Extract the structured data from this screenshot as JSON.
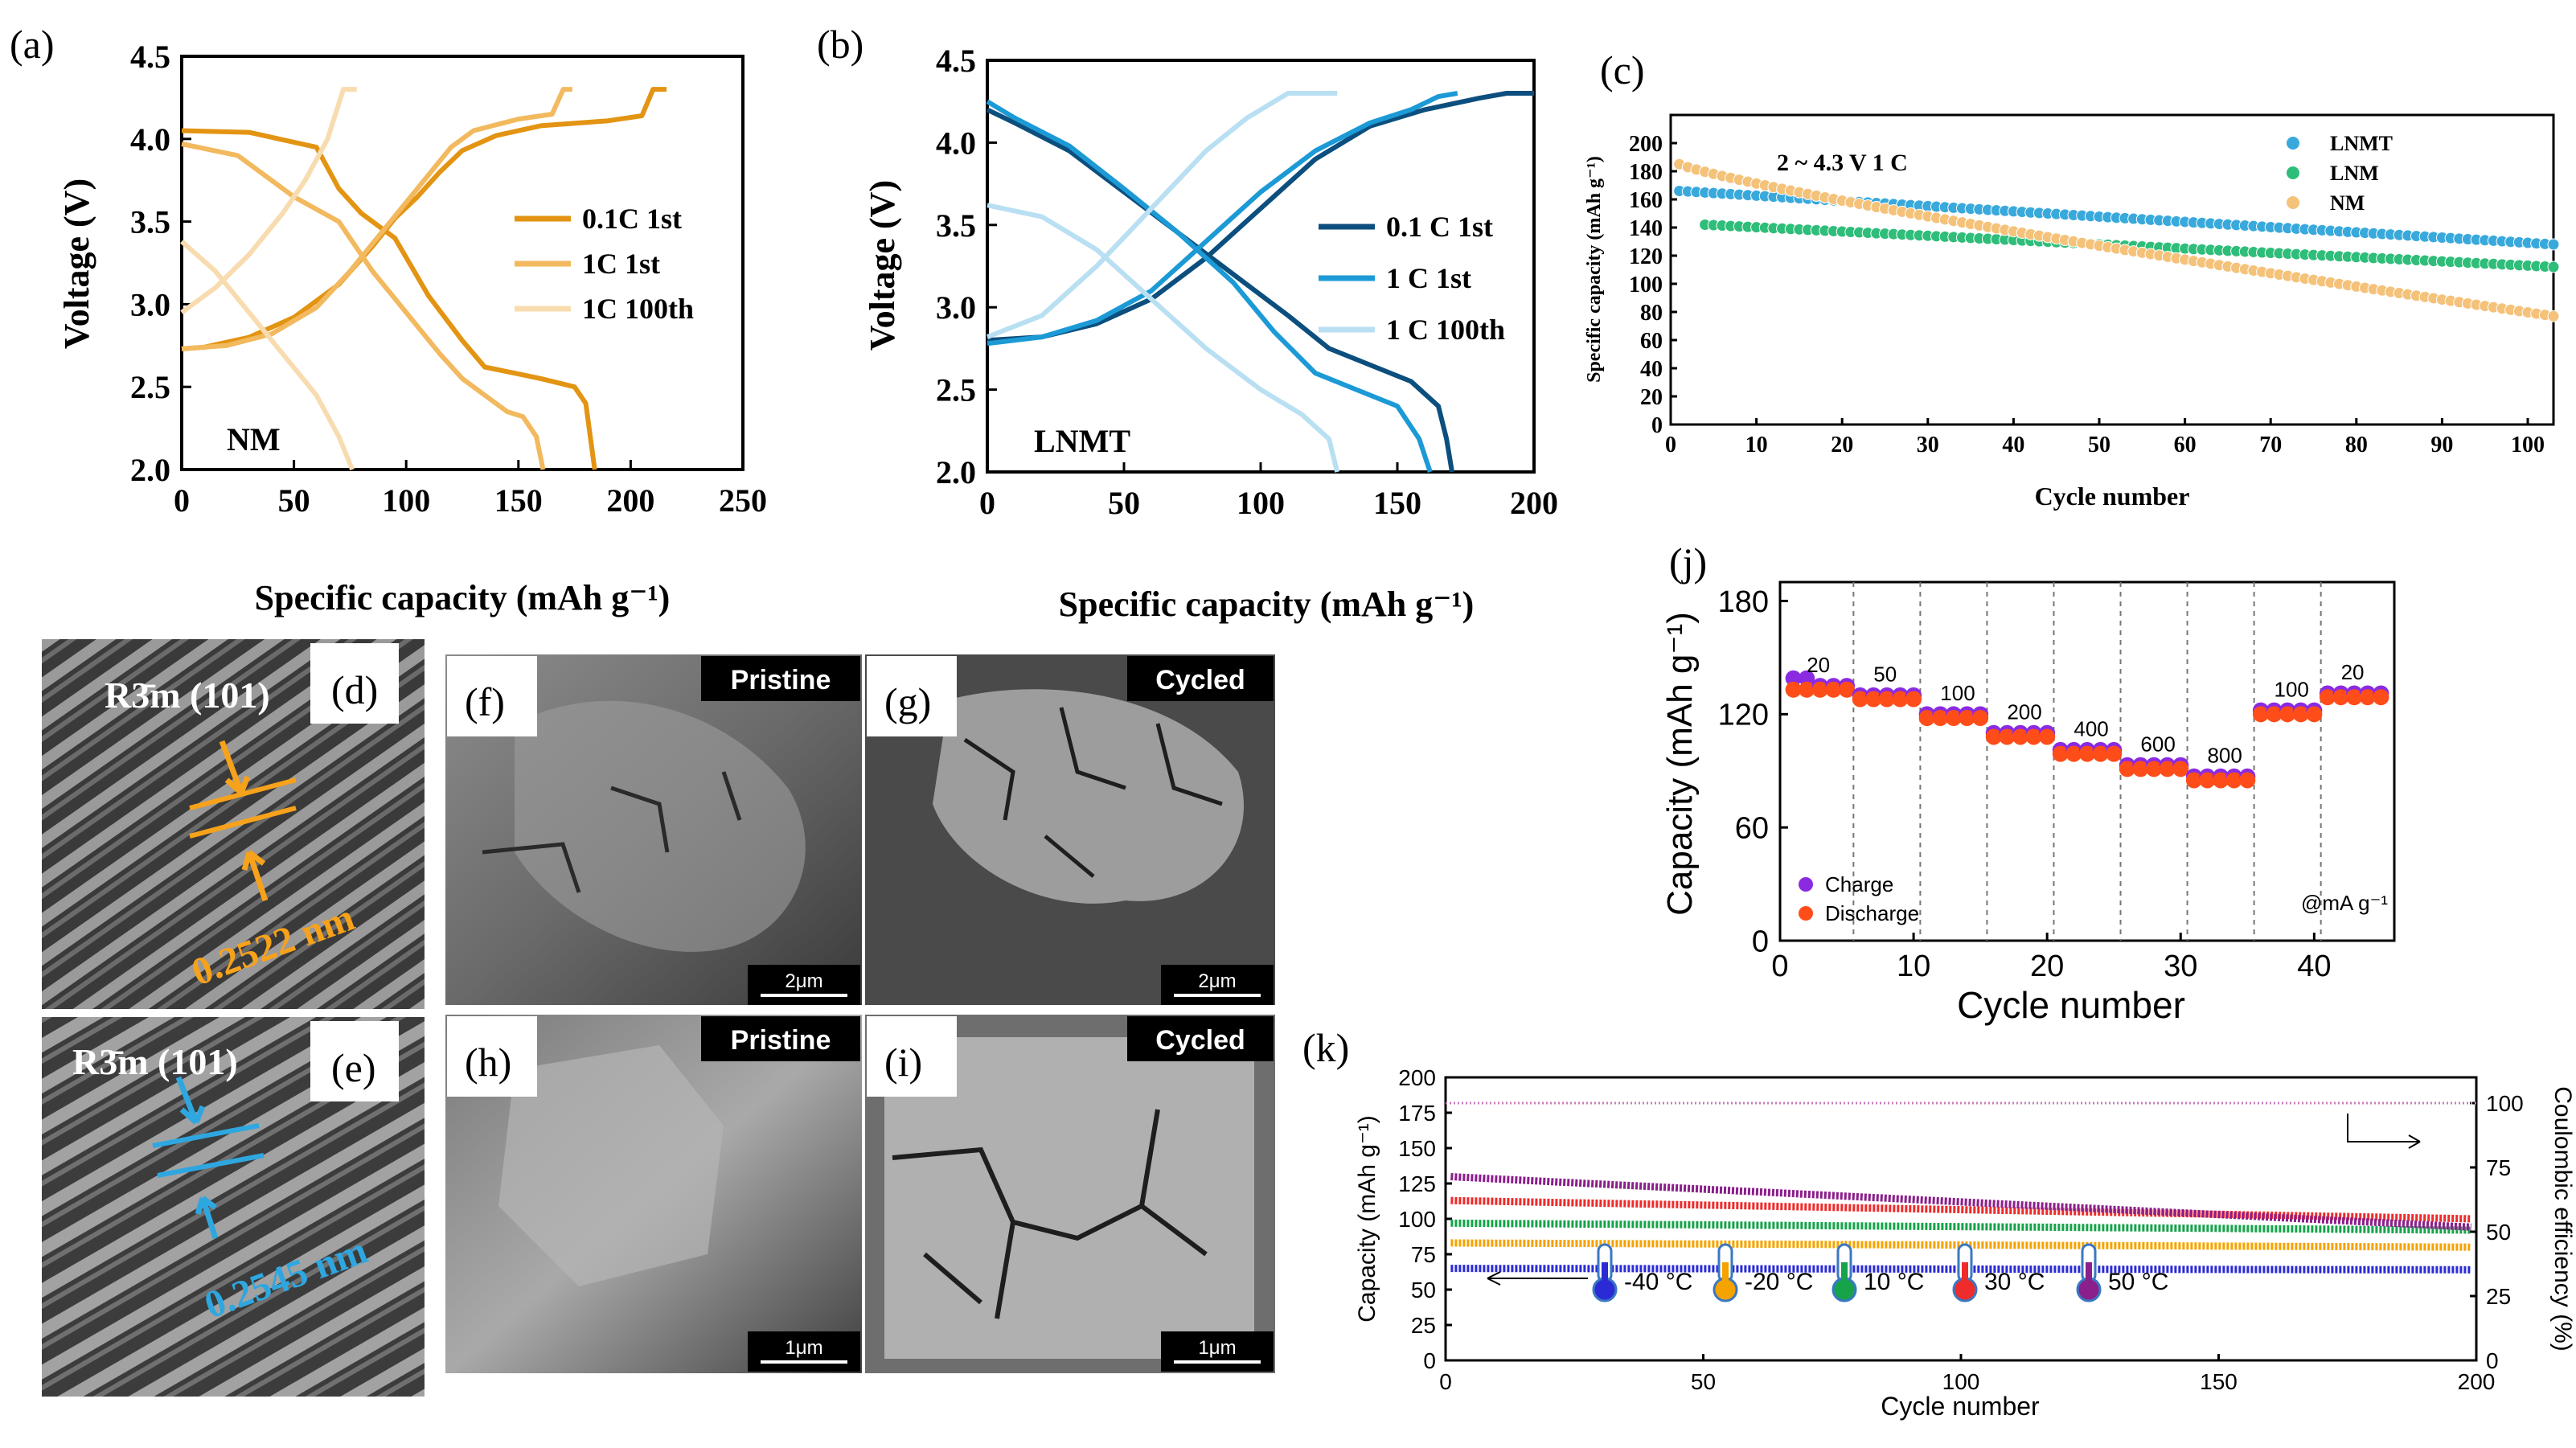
{
  "colors": {
    "orange_dark": "#e39412",
    "orange_mid": "#f2b95e",
    "orange_light": "#f8dcb0",
    "blue_dark": "#0c4f7e",
    "blue_mid": "#1c9ad6",
    "blue_light": "#b9dff2",
    "c_lnmt": "#39a9dc",
    "c_lnm": "#2fbd7a",
    "c_nm": "#f5c27a",
    "purple": "#8a2be2",
    "red_orange": "#ff4d1a",
    "hr_orange": "#f7a21b",
    "hr_blue": "#2ea7e0"
  },
  "panels": {
    "a": {
      "tag": "(a)",
      "sample_label": "NM"
    },
    "b": {
      "tag": "(b)",
      "sample_label": "LNMT"
    },
    "c": {
      "tag": "(c)",
      "condition": "2 ~ 4.3 V  1 C"
    },
    "d": {
      "tag": "(d)",
      "phase": "R3̄m (101)",
      "spacing": "0.2522 nm"
    },
    "e": {
      "tag": "(e)",
      "phase": "R3̄m (101)",
      "spacing": "0.2545 nm"
    },
    "f": {
      "tag": "(f)",
      "state": "Pristine",
      "scale": "2μm"
    },
    "g": {
      "tag": "(g)",
      "state": "Cycled",
      "scale": "2μm"
    },
    "h": {
      "tag": "(h)",
      "state": "Pristine",
      "scale": "1μm"
    },
    "i": {
      "tag": "(i)",
      "state": "Cycled",
      "scale": "1μm"
    },
    "j": {
      "tag": "(j)",
      "unit_note": "@mA g⁻¹"
    },
    "k": {
      "tag": "(k)",
      "temperatures": [
        "-40 °C",
        "-20 °C",
        "10 °C",
        "30 °C",
        "50 °C"
      ]
    }
  },
  "chart_data": [
    {
      "id": "a",
      "type": "line",
      "xlabel": "Specific capacity (mAh g⁻¹)",
      "ylabel": "Voltage (V)",
      "xlim": [
        0,
        250
      ],
      "ylim": [
        2.0,
        4.5
      ],
      "xticks": [
        0,
        50,
        100,
        150,
        200,
        250
      ],
      "yticks": [
        2.0,
        2.5,
        3.0,
        3.5,
        4.0,
        4.5
      ],
      "series": [
        {
          "name": "0.1C 1st",
          "color": "#e39412",
          "charge": [
            [
              0,
              2.73
            ],
            [
              10,
              2.74
            ],
            [
              30,
              2.8
            ],
            [
              50,
              2.92
            ],
            [
              70,
              3.12
            ],
            [
              85,
              3.35
            ],
            [
              95,
              3.52
            ],
            [
              105,
              3.65
            ],
            [
              115,
              3.8
            ],
            [
              125,
              3.93
            ],
            [
              140,
              4.02
            ],
            [
              160,
              4.08
            ],
            [
              190,
              4.11
            ],
            [
              205,
              4.14
            ],
            [
              210,
              4.3
            ],
            [
              216,
              4.3
            ]
          ],
          "discharge": [
            [
              0,
              4.05
            ],
            [
              30,
              4.04
            ],
            [
              60,
              3.95
            ],
            [
              70,
              3.7
            ],
            [
              80,
              3.55
            ],
            [
              95,
              3.4
            ],
            [
              110,
              3.05
            ],
            [
              125,
              2.78
            ],
            [
              135,
              2.62
            ],
            [
              160,
              2.55
            ],
            [
              175,
              2.5
            ],
            [
              180,
              2.4
            ],
            [
              184,
              2.0
            ]
          ]
        },
        {
          "name": "1C 1st",
          "color": "#f2b95e",
          "charge": [
            [
              0,
              2.73
            ],
            [
              20,
              2.75
            ],
            [
              40,
              2.82
            ],
            [
              60,
              2.98
            ],
            [
              75,
              3.2
            ],
            [
              90,
              3.45
            ],
            [
              105,
              3.7
            ],
            [
              120,
              3.95
            ],
            [
              130,
              4.05
            ],
            [
              150,
              4.12
            ],
            [
              165,
              4.15
            ],
            [
              170,
              4.3
            ],
            [
              174,
              4.3
            ]
          ],
          "discharge": [
            [
              0,
              3.97
            ],
            [
              25,
              3.9
            ],
            [
              50,
              3.65
            ],
            [
              70,
              3.5
            ],
            [
              85,
              3.2
            ],
            [
              100,
              2.95
            ],
            [
              115,
              2.7
            ],
            [
              125,
              2.55
            ],
            [
              135,
              2.45
            ],
            [
              145,
              2.35
            ],
            [
              152,
              2.32
            ],
            [
              158,
              2.2
            ],
            [
              161,
              2.0
            ]
          ]
        },
        {
          "name": "1C 100th",
          "color": "#f8dcb0",
          "charge": [
            [
              0,
              2.95
            ],
            [
              15,
              3.1
            ],
            [
              30,
              3.3
            ],
            [
              45,
              3.55
            ],
            [
              55,
              3.75
            ],
            [
              65,
              4.0
            ],
            [
              72,
              4.3
            ],
            [
              78,
              4.3
            ]
          ],
          "discharge": [
            [
              0,
              3.38
            ],
            [
              15,
              3.2
            ],
            [
              30,
              2.95
            ],
            [
              45,
              2.7
            ],
            [
              60,
              2.45
            ],
            [
              70,
              2.2
            ],
            [
              76,
              2.0
            ]
          ]
        }
      ]
    },
    {
      "id": "b",
      "type": "line",
      "xlabel": "Specific capacity (mAh g⁻¹)",
      "ylabel": "Voltage (V)",
      "xlim": [
        0,
        200
      ],
      "ylim": [
        2.0,
        4.5
      ],
      "xticks": [
        0,
        50,
        100,
        150,
        200
      ],
      "yticks": [
        2.0,
        2.5,
        3.0,
        3.5,
        4.0,
        4.5
      ],
      "series": [
        {
          "name": "0.1 C 1st",
          "color": "#0c4f7e",
          "charge": [
            [
              0,
              2.8
            ],
            [
              20,
              2.82
            ],
            [
              40,
              2.9
            ],
            [
              60,
              3.05
            ],
            [
              80,
              3.3
            ],
            [
              100,
              3.6
            ],
            [
              120,
              3.9
            ],
            [
              140,
              4.1
            ],
            [
              160,
              4.2
            ],
            [
              180,
              4.27
            ],
            [
              190,
              4.3
            ],
            [
              200,
              4.3
            ]
          ],
          "discharge": [
            [
              0,
              4.2
            ],
            [
              10,
              4.12
            ],
            [
              30,
              3.95
            ],
            [
              50,
              3.7
            ],
            [
              70,
              3.45
            ],
            [
              90,
              3.2
            ],
            [
              110,
              2.95
            ],
            [
              125,
              2.75
            ],
            [
              140,
              2.65
            ],
            [
              155,
              2.55
            ],
            [
              165,
              2.4
            ],
            [
              168,
              2.2
            ],
            [
              170,
              2.0
            ]
          ]
        },
        {
          "name": "1 C 1st",
          "color": "#1c9ad6",
          "charge": [
            [
              0,
              2.78
            ],
            [
              20,
              2.82
            ],
            [
              40,
              2.92
            ],
            [
              60,
              3.1
            ],
            [
              80,
              3.4
            ],
            [
              100,
              3.7
            ],
            [
              120,
              3.95
            ],
            [
              140,
              4.12
            ],
            [
              155,
              4.2
            ],
            [
              165,
              4.28
            ],
            [
              172,
              4.3
            ]
          ],
          "discharge": [
            [
              0,
              4.25
            ],
            [
              10,
              4.15
            ],
            [
              30,
              3.98
            ],
            [
              50,
              3.72
            ],
            [
              70,
              3.45
            ],
            [
              90,
              3.15
            ],
            [
              105,
              2.85
            ],
            [
              120,
              2.6
            ],
            [
              135,
              2.5
            ],
            [
              150,
              2.4
            ],
            [
              158,
              2.2
            ],
            [
              162,
              2.0
            ]
          ]
        },
        {
          "name": "1 C 100th",
          "color": "#b9dff2",
          "charge": [
            [
              0,
              2.82
            ],
            [
              20,
              2.95
            ],
            [
              40,
              3.25
            ],
            [
              60,
              3.6
            ],
            [
              80,
              3.95
            ],
            [
              95,
              4.15
            ],
            [
              110,
              4.3
            ],
            [
              128,
              4.3
            ]
          ],
          "discharge": [
            [
              0,
              3.62
            ],
            [
              20,
              3.55
            ],
            [
              40,
              3.35
            ],
            [
              60,
              3.05
            ],
            [
              80,
              2.75
            ],
            [
              100,
              2.5
            ],
            [
              115,
              2.35
            ],
            [
              125,
              2.2
            ],
            [
              128,
              2.0
            ]
          ]
        }
      ]
    },
    {
      "id": "c",
      "type": "scatter",
      "xlabel": "Cycle number",
      "ylabel": "Specific capacity (mAh g⁻¹)",
      "xlim": [
        0,
        103
      ],
      "ylim": [
        0,
        220
      ],
      "xticks": [
        0,
        10,
        20,
        30,
        40,
        50,
        60,
        70,
        80,
        90,
        100
      ],
      "yticks": [
        0,
        20,
        40,
        60,
        80,
        100,
        120,
        140,
        160,
        180,
        200
      ],
      "series": [
        {
          "name": "LNMT",
          "color": "#39a9dc",
          "start_x": 1,
          "end_x": 103,
          "start_y": 166,
          "end_y": 128
        },
        {
          "name": "LNM",
          "color": "#2fbd7a",
          "start_x": 4,
          "end_x": 103,
          "start_y": 142,
          "end_y": 112
        },
        {
          "name": "NM",
          "color": "#f5c27a",
          "start_x": 1,
          "end_x": 103,
          "start_y": 185,
          "end_y": 77
        }
      ]
    },
    {
      "id": "j",
      "type": "scatter",
      "xlabel": "Cycle number",
      "ylabel": "Capacity (mAh g⁻¹)",
      "xlim": [
        0,
        46
      ],
      "ylim": [
        0,
        190
      ],
      "xticks": [
        0,
        10,
        20,
        30,
        40
      ],
      "yticks": [
        0,
        60,
        120,
        180
      ],
      "rate_labels": [
        "20",
        "50",
        "100",
        "200",
        "400",
        "600",
        "800",
        "100",
        "20"
      ],
      "rate_values": [
        133,
        128,
        118,
        108,
        99,
        91,
        85,
        120,
        129
      ],
      "series": [
        {
          "name": "Charge",
          "color": "#8a2be2"
        },
        {
          "name": "Discharge",
          "color": "#ff4d1a"
        }
      ]
    },
    {
      "id": "k",
      "type": "scatter",
      "xlabel": "Cycle number",
      "ylabel": "Capacity (mAh g⁻¹)",
      "y2label": "Coulombic efficiency (%)",
      "xlim": [
        0,
        200
      ],
      "ylim": [
        0,
        200
      ],
      "y2lim": [
        0,
        110
      ],
      "xticks": [
        0,
        50,
        100,
        150,
        200
      ],
      "yticks": [
        0,
        25,
        50,
        75,
        100,
        125,
        150,
        175,
        200
      ],
      "y2ticks": [
        0,
        25,
        50,
        75,
        100
      ],
      "series": [
        {
          "name": "-40 °C",
          "color": "#2b2bd6",
          "start_y": 65,
          "end_y": 64
        },
        {
          "name": "-20 °C",
          "color": "#f5a300",
          "start_y": 83,
          "end_y": 80
        },
        {
          "name": "10 °C",
          "color": "#16a34a",
          "start_y": 97,
          "end_y": 92
        },
        {
          "name": "30 °C",
          "color": "#ef2b2b",
          "start_y": 113,
          "end_y": 100
        },
        {
          "name": "50 °C",
          "color": "#8b1f8b",
          "start_y": 130,
          "end_y": 94
        }
      ]
    }
  ]
}
